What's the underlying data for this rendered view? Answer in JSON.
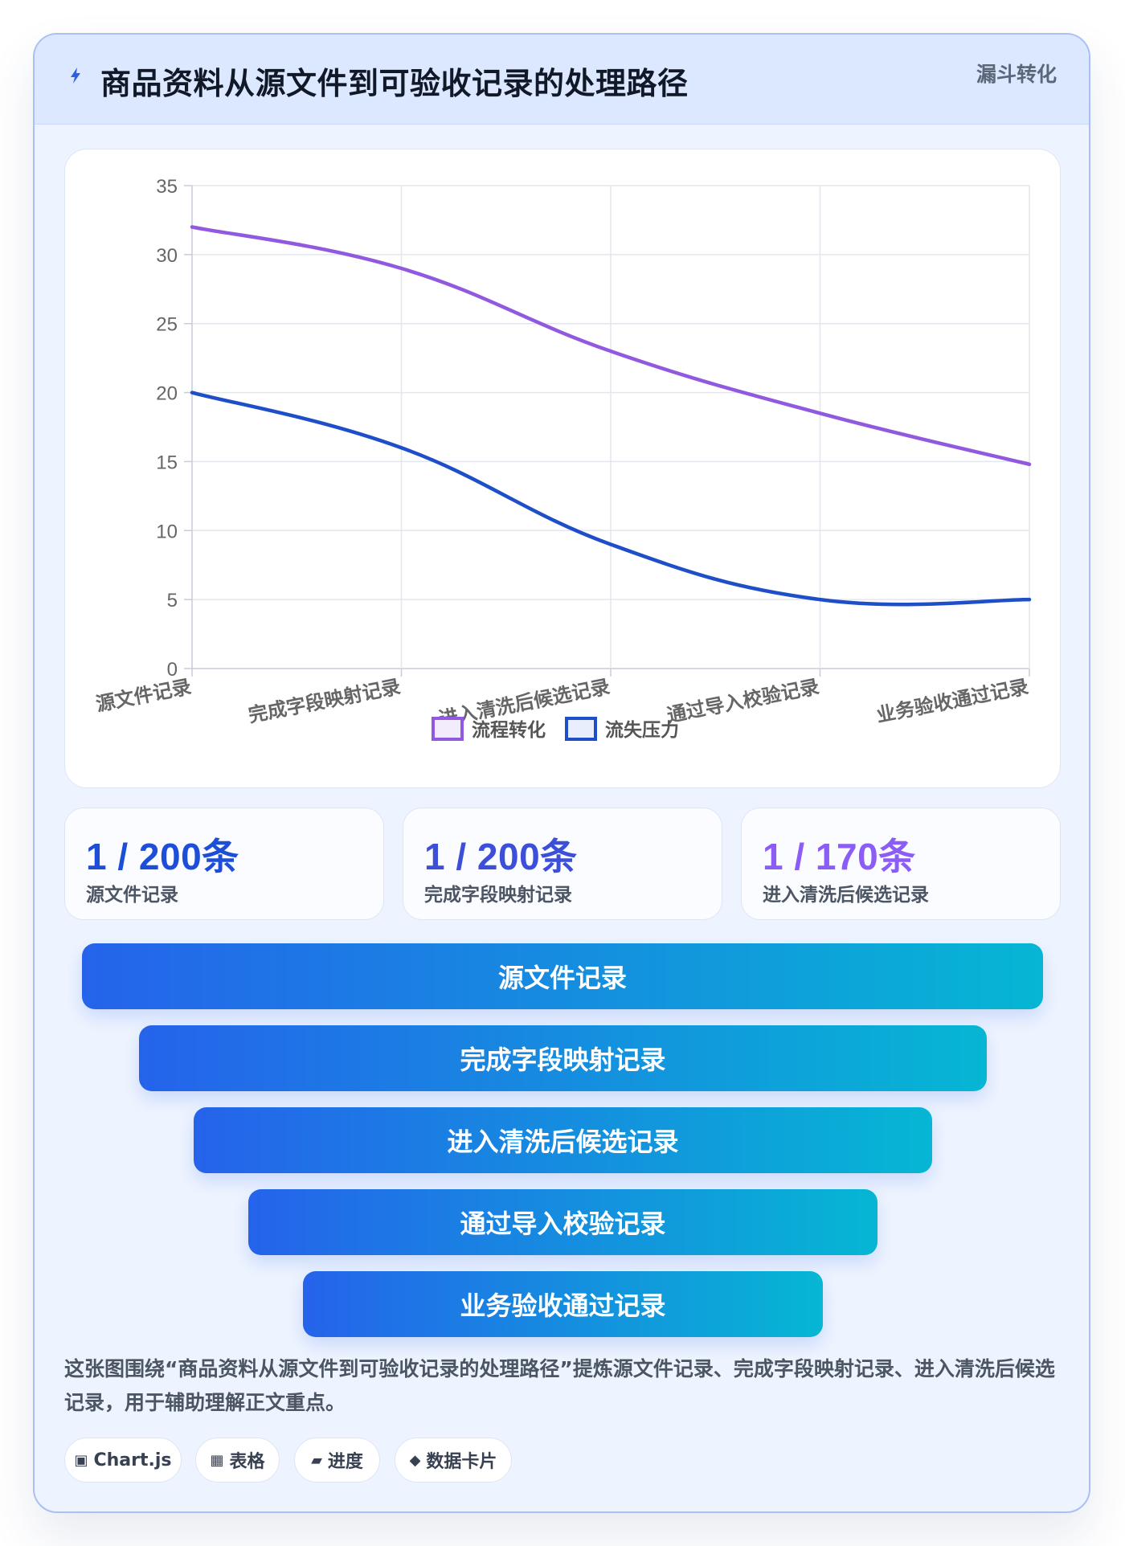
{
  "header": {
    "icon": "lightning-icon",
    "title": "商品资料从源文件到可验收记录的处理路径",
    "tag": "漏斗转化"
  },
  "chart_data": {
    "type": "line",
    "categories": [
      "源文件记录",
      "完成字段映射记录",
      "进入清洗后候选记录",
      "通过导入校验记录",
      "业务验收通过记录"
    ],
    "series": [
      {
        "name": "流程转化",
        "values": [
          32,
          29,
          23,
          18.5,
          14.8
        ],
        "color": "#9159e0"
      },
      {
        "name": "流失压力",
        "values": [
          20,
          16,
          9,
          5,
          5
        ],
        "color": "#1e4fc9"
      }
    ],
    "ylim": [
      0,
      35
    ],
    "yticks": [
      0,
      5,
      10,
      15,
      20,
      25,
      30,
      35
    ],
    "grid": true,
    "legend_position": "bottom",
    "title": "",
    "xlabel": "",
    "ylabel": ""
  },
  "stats": [
    {
      "value": "1 / 200条",
      "label": "源文件记录",
      "color": "#1d4ed8"
    },
    {
      "value": "1 / 200条",
      "label": "完成字段映射记录",
      "color": "#3b4fd8"
    },
    {
      "value": "1 / 170条",
      "label": "进入清洗后候选记录",
      "color": "#8b5cf6"
    }
  ],
  "funnel": [
    "源文件记录",
    "完成字段映射记录",
    "进入清洗后候选记录",
    "通过导入校验记录",
    "业务验收通过记录"
  ],
  "description": "这张图围绕“商品资料从源文件到可验收记录的处理路径”提炼源文件记录、完成字段映射记录、进入清洗后候选记录，用于辅助理解正文重点。",
  "tags": [
    {
      "icon": "▣",
      "label": "Chart.js"
    },
    {
      "icon": "▦",
      "label": "表格"
    },
    {
      "icon": "▰",
      "label": "进度"
    },
    {
      "icon": "◆",
      "label": "数据卡片"
    }
  ]
}
